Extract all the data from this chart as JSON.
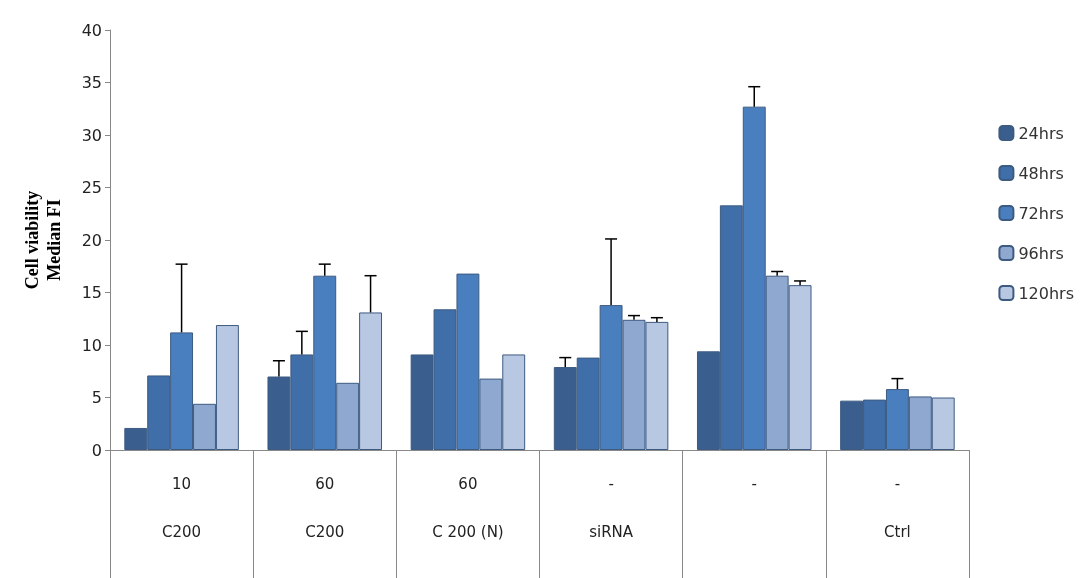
{
  "chart_data": {
    "type": "bar",
    "ylabel": "Cell viability\nMedian FI",
    "categories": [
      "10\n\nC200",
      "60\n\nC200",
      "60\n\nC 200 (N)",
      "-\n\nsiRNA",
      "-\n\n",
      "-\n\nCtrl"
    ],
    "series": [
      {
        "name": "24hrs",
        "color": "#3a5f8f",
        "values": [
          2.1,
          7.0,
          9.1,
          7.9,
          9.4,
          4.7
        ],
        "errors": [
          null,
          1.5,
          null,
          0.9,
          null,
          null
        ]
      },
      {
        "name": "48hrs",
        "color": "#3f6ea8",
        "values": [
          7.1,
          9.1,
          13.4,
          8.8,
          23.3,
          4.8
        ],
        "errors": [
          null,
          2.2,
          null,
          null,
          null,
          null
        ]
      },
      {
        "name": "72hrs",
        "color": "#4a7fbf",
        "values": [
          11.2,
          16.6,
          16.8,
          13.8,
          32.7,
          5.8
        ],
        "errors": [
          6.5,
          1.1,
          null,
          6.3,
          1.9,
          1.0
        ]
      },
      {
        "name": "96hrs",
        "color": "#8fa8cf",
        "values": [
          4.4,
          6.4,
          6.8,
          12.4,
          16.6,
          5.1
        ],
        "errors": [
          null,
          null,
          null,
          0.4,
          0.4,
          null
        ]
      },
      {
        "name": "120hrs",
        "color": "#b9c8e2",
        "values": [
          11.9,
          13.1,
          9.1,
          12.2,
          15.7,
          5.0
        ],
        "errors": [
          null,
          3.5,
          null,
          0.4,
          0.4,
          null
        ]
      }
    ],
    "ylim": [
      0,
      40
    ],
    "yticks": [
      0,
      5,
      10,
      15,
      20,
      25,
      30,
      35,
      40
    ],
    "grid": false,
    "legend": "right"
  }
}
